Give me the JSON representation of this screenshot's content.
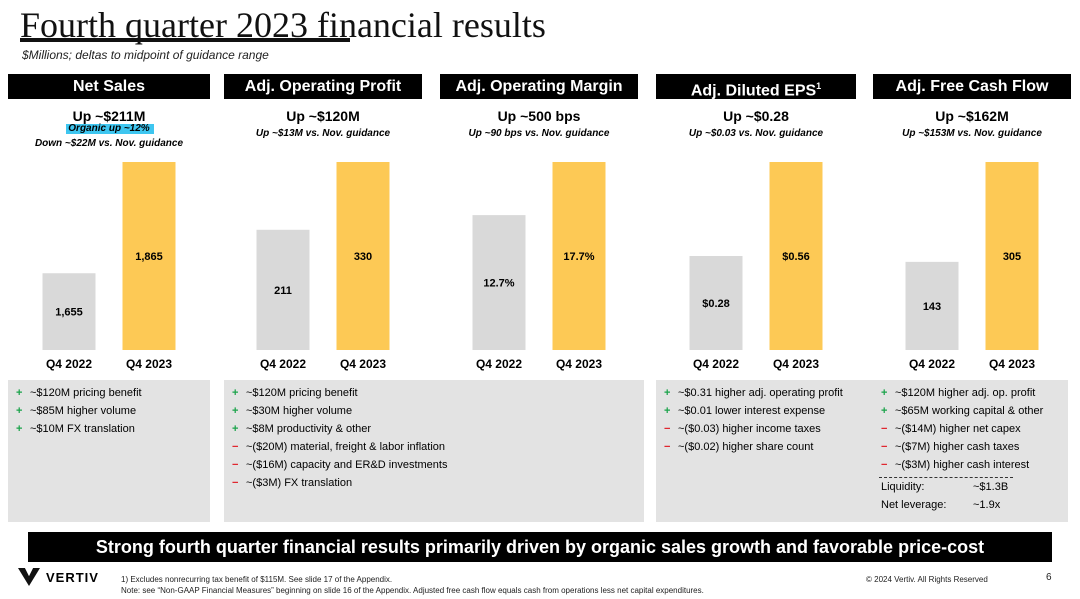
{
  "title": "Fourth quarter 2023 financial results",
  "subtitle": "$Millions; deltas to midpoint of guidance range",
  "panels": [
    {
      "header": "Net Sales",
      "superscript": "",
      "headline": "Up ~$211M",
      "organic": "Organic up ~12%",
      "delta": "Down ~$22M vs. Nov. guidance",
      "bullets": [
        {
          "sign": "+",
          "text": "~$120M pricing benefit"
        },
        {
          "sign": "+",
          "text": "~$85M higher volume"
        },
        {
          "sign": "+",
          "text": "~$10M FX translation"
        }
      ]
    },
    {
      "header": "Adj. Operating Profit",
      "superscript": "",
      "headline": "Up ~$120M",
      "delta": "Up ~$13M vs. Nov. guidance",
      "bullets": [
        {
          "sign": "+",
          "text": "~$120M pricing benefit"
        },
        {
          "sign": "+",
          "text": "~$30M higher volume"
        },
        {
          "sign": "+",
          "text": "~$8M productivity & other"
        },
        {
          "sign": "−",
          "text": "~($20M) material, freight & labor inflation"
        },
        {
          "sign": "−",
          "text": "~($16M) capacity and ER&D investments"
        },
        {
          "sign": "−",
          "text": "~($3M) FX translation"
        }
      ]
    },
    {
      "header": "Adj. Operating Margin",
      "superscript": "",
      "headline": "Up ~500 bps",
      "delta": "Up ~90 bps vs. Nov. guidance",
      "bullets": []
    },
    {
      "header": "Adj. Diluted EPS",
      "superscript": "1",
      "headline": "Up ~$0.28",
      "delta": "Up ~$0.03 vs. Nov. guidance",
      "bullets": [
        {
          "sign": "+",
          "text": "~$0.31 higher adj. operating profit"
        },
        {
          "sign": "+",
          "text": "~$0.01 lower interest expense"
        },
        {
          "sign": "−",
          "text": "~($0.03) higher income taxes"
        },
        {
          "sign": "−",
          "text": "~($0.02) higher share count"
        }
      ]
    },
    {
      "header": "Adj. Free Cash Flow",
      "superscript": "",
      "headline": "Up ~$162M",
      "delta": "Up ~$153M vs. Nov. guidance",
      "bullets": [
        {
          "sign": "+",
          "text": "~$120M higher adj. op. profit"
        },
        {
          "sign": "+",
          "text": "~$65M working capital & other"
        },
        {
          "sign": "−",
          "text": "~($14M) higher net capex"
        },
        {
          "sign": "−",
          "text": "~($7M) higher cash taxes"
        },
        {
          "sign": "−",
          "text": "~($3M) higher cash interest"
        }
      ],
      "liquidity": [
        {
          "label": "Liquidity:",
          "value": "~$1.3B"
        },
        {
          "label": "Net leverage:",
          "value": "~1.9x"
        }
      ]
    }
  ],
  "chart_data": [
    {
      "type": "bar",
      "title": "Net Sales",
      "categories": [
        "Q4 2022",
        "Q4 2023"
      ],
      "values": [
        1655,
        1865
      ],
      "labels": [
        "1,655",
        "1,865"
      ],
      "colors": [
        "#d9d9d9",
        "#fdc955"
      ]
    },
    {
      "type": "bar",
      "title": "Adj. Operating Profit",
      "categories": [
        "Q4 2022",
        "Q4 2023"
      ],
      "values": [
        211,
        330
      ],
      "labels": [
        "211",
        "330"
      ],
      "colors": [
        "#d9d9d9",
        "#fdc955"
      ]
    },
    {
      "type": "bar",
      "title": "Adj. Operating Margin",
      "categories": [
        "Q4 2022",
        "Q4 2023"
      ],
      "values": [
        12.7,
        17.7
      ],
      "labels": [
        "12.7%",
        "17.7%"
      ],
      "colors": [
        "#d9d9d9",
        "#fdc955"
      ]
    },
    {
      "type": "bar",
      "title": "Adj. Diluted EPS",
      "categories": [
        "Q4 2022",
        "Q4 2023"
      ],
      "values": [
        0.28,
        0.56
      ],
      "labels": [
        "$0.28",
        "$0.56"
      ],
      "colors": [
        "#d9d9d9",
        "#fdc955"
      ]
    },
    {
      "type": "bar",
      "title": "Adj. Free Cash Flow",
      "categories": [
        "Q4 2022",
        "Q4 2023"
      ],
      "values": [
        143,
        305
      ],
      "labels": [
        "143",
        "305"
      ],
      "colors": [
        "#d9d9d9",
        "#fdc955"
      ]
    }
  ],
  "banner": "Strong fourth quarter financial results primarily driven by organic sales growth and favorable price-cost",
  "logo": "VERTIV",
  "footnote1": "1) Excludes nonrecurring tax benefit of $115M. See slide 17 of the Appendix.",
  "footnote2": "Note: see “Non-GAAP Financial Measures” beginning on slide 16 of the Appendix.  Adjusted free cash flow equals cash from operations less net capital expenditures.",
  "copyright": "© 2024 Vertiv. All Rights Reserved",
  "page_number": "6",
  "colors": {
    "prior": "#d9d9d9",
    "current": "#fdc955",
    "plus": "#1aa34a",
    "minus": "#e0242c",
    "highlight": "#3ec6f0"
  }
}
